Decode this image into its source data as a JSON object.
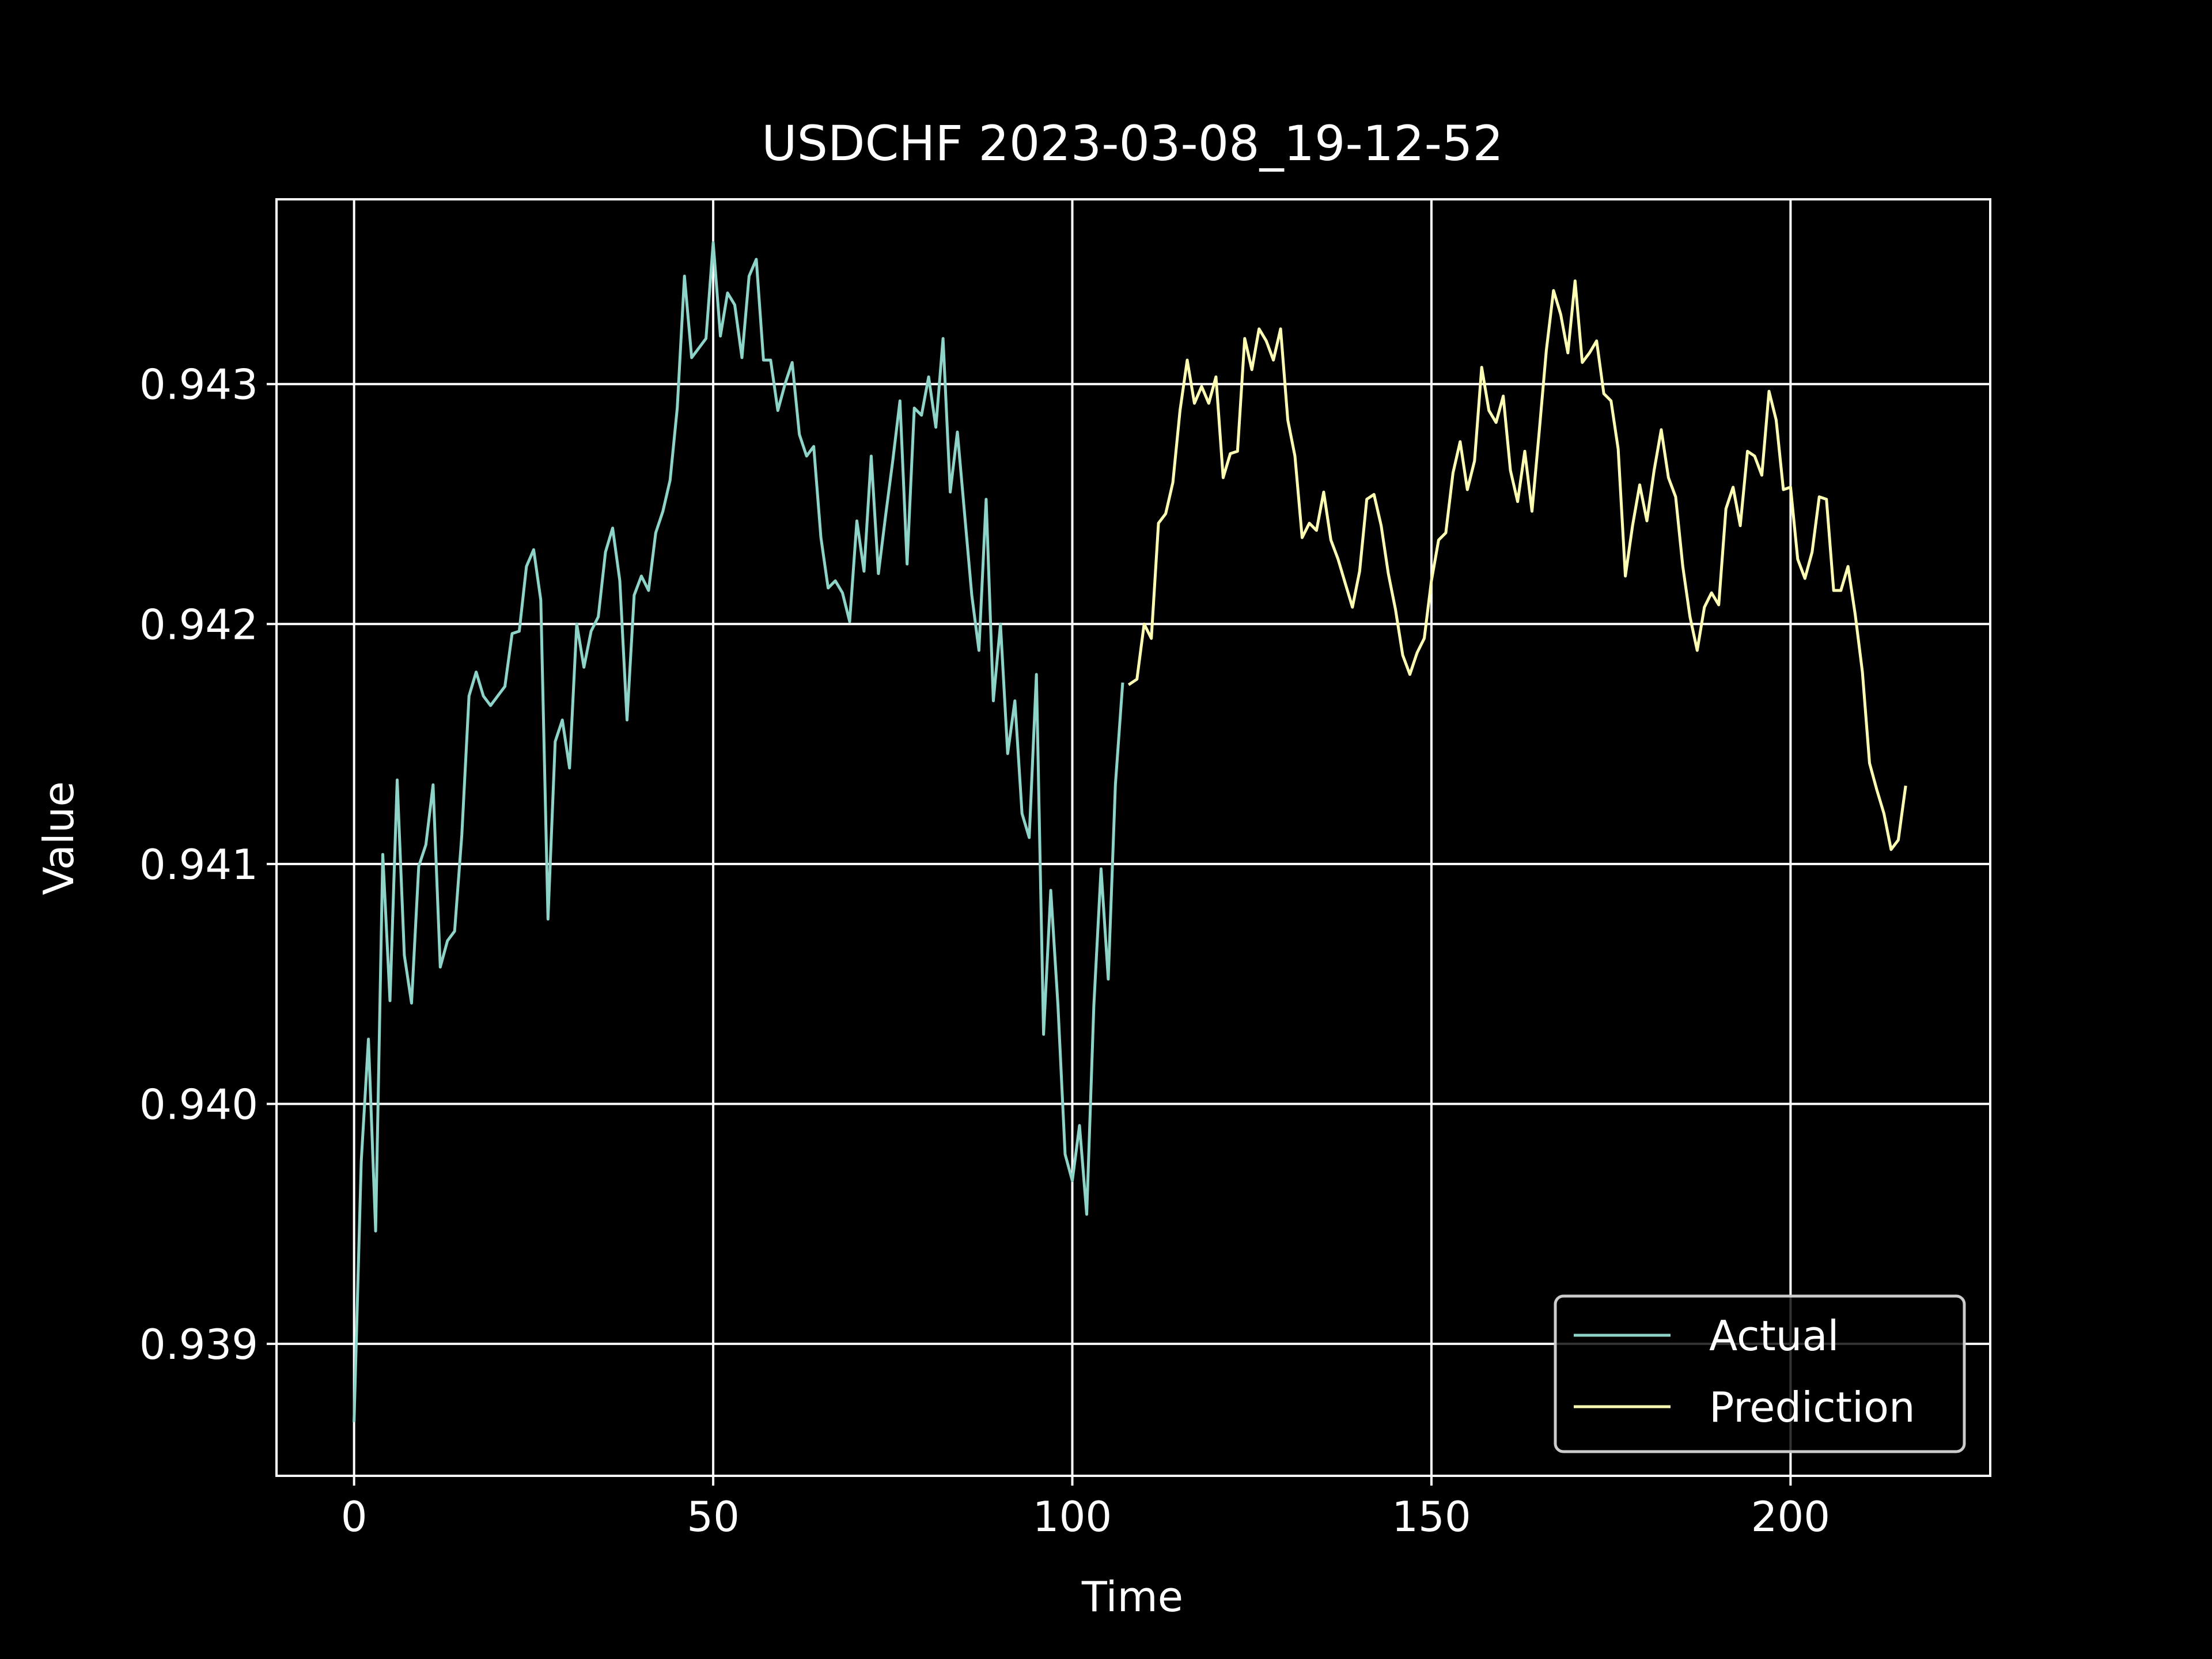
{
  "chart_data": {
    "type": "line",
    "title": "USDCHF 2023-03-08_19-12-52",
    "xlabel": "Time",
    "ylabel": "Value",
    "xlim": [
      -10.8,
      227.8
    ],
    "ylim": [
      0.93845,
      0.94377
    ],
    "xticks": [
      0,
      50,
      100,
      150,
      200
    ],
    "xtick_labels": [
      "0",
      "50",
      "100",
      "150",
      "200"
    ],
    "yticks": [
      0.939,
      0.94,
      0.941,
      0.942,
      0.943
    ],
    "ytick_labels": [
      "0.939",
      "0.940",
      "0.941",
      "0.942",
      "0.943"
    ],
    "grid": true,
    "legend_position": "lower right",
    "background": "#000000",
    "series": [
      {
        "name": "Actual",
        "color": "#8dd3c7",
        "x_start": 0,
        "values": [
          0.93868,
          0.93976,
          0.94027,
          0.93947,
          0.94104,
          0.94043,
          0.94135,
          0.94062,
          0.94042,
          0.94099,
          0.94108,
          0.94133,
          0.94057,
          0.94068,
          0.94072,
          0.94112,
          0.9417,
          0.9418,
          0.9417,
          0.94166,
          0.9417,
          0.94174,
          0.94196,
          0.94197,
          0.94224,
          0.94231,
          0.9421,
          0.94077,
          0.94151,
          0.9416,
          0.9414,
          0.942,
          0.94182,
          0.94197,
          0.94203,
          0.9423,
          0.9424,
          0.94218,
          0.9416,
          0.94212,
          0.9422,
          0.94214,
          0.94238,
          0.94247,
          0.9426,
          0.9429,
          0.94345,
          0.94311,
          0.94315,
          0.94319,
          0.94359,
          0.9432,
          0.94338,
          0.94333,
          0.94311,
          0.94345,
          0.94352,
          0.9431,
          0.9431,
          0.94289,
          0.943,
          0.94309,
          0.94279,
          0.9427,
          0.94274,
          0.94236,
          0.94215,
          0.94218,
          0.94213,
          0.94201,
          0.94243,
          0.94222,
          0.9427,
          0.94221,
          0.94245,
          0.94268,
          0.94293,
          0.94225,
          0.9429,
          0.94287,
          0.94303,
          0.94282,
          0.94319,
          0.94255,
          0.9428,
          0.94246,
          0.94212,
          0.94189,
          0.94252,
          0.94168,
          0.942,
          0.94146,
          0.94168,
          0.94121,
          0.94111,
          0.94179,
          0.94029,
          0.94089,
          0.94041,
          0.93979,
          0.93968,
          0.93991,
          0.93954,
          0.94041,
          0.94098,
          0.94052,
          0.94133,
          0.94175
        ]
      },
      {
        "name": "Prediction",
        "color": "#ffffb3",
        "x_start": 108,
        "values": [
          0.94175,
          0.94177,
          0.942,
          0.94194,
          0.94242,
          0.94246,
          0.94259,
          0.94289,
          0.9431,
          0.94292,
          0.94299,
          0.94292,
          0.94303,
          0.94261,
          0.94271,
          0.94272,
          0.94319,
          0.94306,
          0.94323,
          0.94318,
          0.9431,
          0.94323,
          0.94285,
          0.9427,
          0.94236,
          0.94242,
          0.94239,
          0.94255,
          0.94235,
          0.94227,
          0.94217,
          0.94207,
          0.94222,
          0.94252,
          0.94254,
          0.94241,
          0.94221,
          0.94206,
          0.94187,
          0.94179,
          0.94188,
          0.94194,
          0.94218,
          0.94235,
          0.94238,
          0.94263,
          0.94276,
          0.94256,
          0.94268,
          0.94307,
          0.94289,
          0.94284,
          0.94295,
          0.94264,
          0.94251,
          0.94272,
          0.94247,
          0.9428,
          0.94314,
          0.94339,
          0.94329,
          0.94313,
          0.94343,
          0.94309,
          0.94313,
          0.94318,
          0.94296,
          0.94293,
          0.94273,
          0.9422,
          0.94241,
          0.94258,
          0.94243,
          0.94264,
          0.94281,
          0.94261,
          0.94253,
          0.94224,
          0.94203,
          0.94189,
          0.94207,
          0.94213,
          0.94208,
          0.94248,
          0.94257,
          0.94241,
          0.94272,
          0.9427,
          0.94262,
          0.94297,
          0.94285,
          0.94256,
          0.94257,
          0.94227,
          0.94219,
          0.9423,
          0.94253,
          0.94252,
          0.94214,
          0.94214,
          0.94224,
          0.94204,
          0.9418,
          0.94142,
          0.94131,
          0.94121,
          0.94106,
          0.9411,
          0.94132
        ]
      }
    ]
  }
}
